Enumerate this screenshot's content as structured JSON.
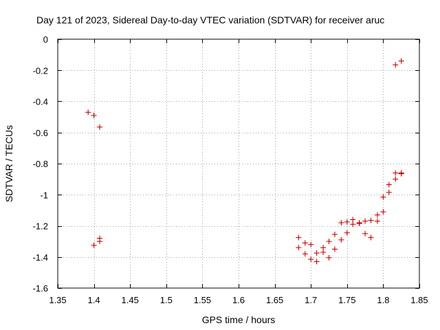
{
  "chart_data": {
    "type": "scatter",
    "title": "Day 121 of 2023, Sidereal Day-to-day VTEC variation (SDTVAR) for receiver aruc",
    "xlabel": "GPS time / hours",
    "ylabel": "SDTVAR / TECUs",
    "xlim": [
      1.35,
      1.85
    ],
    "ylim": [
      -1.6,
      0
    ],
    "xticks": [
      1.35,
      1.4,
      1.45,
      1.5,
      1.55,
      1.6,
      1.65,
      1.7,
      1.75,
      1.8,
      1.85
    ],
    "xtick_labels": [
      "1.35",
      "1.4",
      "1.45",
      "1.5",
      "1.55",
      "1.6",
      "1.65",
      "1.7",
      "1.75",
      "1.8",
      "1.85"
    ],
    "yticks": [
      0,
      -0.2,
      -0.4,
      -0.6,
      -0.8,
      -1,
      -1.2,
      -1.4,
      -1.6
    ],
    "ytick_labels": [
      "0",
      "-0.2",
      "-0.4",
      "-0.6",
      "-0.8",
      "-1",
      "-1.2",
      "-1.4",
      "-1.6"
    ],
    "grid": true,
    "marker": "+",
    "series": [
      {
        "name": "SDTVAR",
        "color": "#cc0000",
        "points": [
          [
            1.392,
            -0.47
          ],
          [
            1.4,
            -0.49
          ],
          [
            1.408,
            -0.565
          ],
          [
            1.4,
            -1.325
          ],
          [
            1.408,
            -1.3
          ],
          [
            1.408,
            -1.28
          ],
          [
            1.683,
            -1.275
          ],
          [
            1.683,
            -1.34
          ],
          [
            1.692,
            -1.31
          ],
          [
            1.692,
            -1.38
          ],
          [
            1.7,
            -1.32
          ],
          [
            1.7,
            -1.415
          ],
          [
            1.708,
            -1.375
          ],
          [
            1.708,
            -1.43
          ],
          [
            1.717,
            -1.34
          ],
          [
            1.717,
            -1.37
          ],
          [
            1.725,
            -1.3
          ],
          [
            1.725,
            -1.405
          ],
          [
            1.733,
            -1.255
          ],
          [
            1.733,
            -1.35
          ],
          [
            1.742,
            -1.18
          ],
          [
            1.742,
            -1.29
          ],
          [
            1.75,
            -1.175
          ],
          [
            1.75,
            -1.245
          ],
          [
            1.758,
            -1.16
          ],
          [
            1.758,
            -1.19
          ],
          [
            1.767,
            -1.18
          ],
          [
            1.767,
            -1.185
          ],
          [
            1.775,
            -1.17
          ],
          [
            1.775,
            -1.25
          ],
          [
            1.783,
            -1.165
          ],
          [
            1.783,
            -1.275
          ],
          [
            1.792,
            -1.13
          ],
          [
            1.792,
            -1.17
          ],
          [
            1.8,
            -1.11
          ],
          [
            1.8,
            -1.015
          ],
          [
            1.808,
            -0.985
          ],
          [
            1.808,
            -0.935
          ],
          [
            1.817,
            -0.9
          ],
          [
            1.817,
            -0.86
          ],
          [
            1.825,
            -0.865
          ],
          [
            1.825,
            -0.86
          ],
          [
            1.817,
            -0.165
          ],
          [
            1.825,
            -0.14
          ]
        ]
      }
    ]
  }
}
